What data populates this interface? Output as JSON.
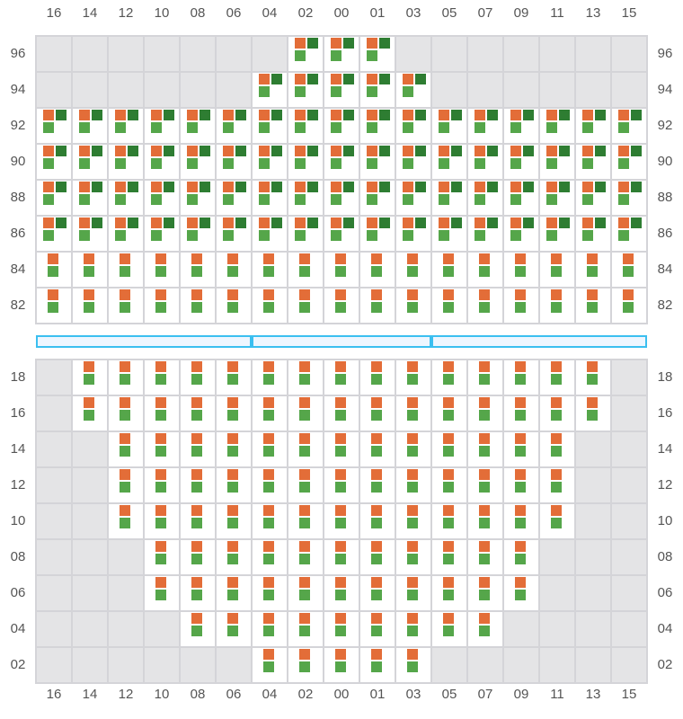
{
  "columns": [
    "16",
    "14",
    "12",
    "10",
    "08",
    "06",
    "04",
    "02",
    "00",
    "01",
    "03",
    "05",
    "07",
    "09",
    "11",
    "13",
    "15"
  ],
  "colors": {
    "orange": "#e36d38",
    "dark_green": "#2e7d32",
    "light_green": "#55a64a",
    "empty_cell": "#e4e4e6",
    "divider": "#3bbff0"
  },
  "legend_of_cell_types": {
    "E": "empty",
    "F": "orange + dark green + light green",
    "B": "orange + light green"
  },
  "top_section": [
    {
      "label": "96",
      "cells": "EEEEEEEFFFEEEEEEE"
    },
    {
      "label": "94",
      "cells": "EEEEEEFFFFFEEEEEE"
    },
    {
      "label": "92",
      "cells": "FFFFFFFFFFFFFFFFF"
    },
    {
      "label": "90",
      "cells": "FFFFFFFFFFFFFFFFF"
    },
    {
      "label": "88",
      "cells": "FFFFFFFFFFFFFFFFF"
    },
    {
      "label": "86",
      "cells": "FFFFFFFFFFFFFFFFF"
    },
    {
      "label": "84",
      "cells": "BBBBBBBBBBBBBBBBB"
    },
    {
      "label": "82",
      "cells": "BBBBBBBBBBBBBBBBB"
    }
  ],
  "divider_segments": 3,
  "bottom_section": [
    {
      "label": "18",
      "cells": "EBBBBBBBBBBBBBBBE"
    },
    {
      "label": "16",
      "cells": "EBBBBBBBBBBBBBBBE"
    },
    {
      "label": "14",
      "cells": "EEBBBBBBBBBBBBBEE"
    },
    {
      "label": "12",
      "cells": "EEBBBBBBBBBBBBBEE"
    },
    {
      "label": "10",
      "cells": "EEBBBBBBBBBBBBBEE"
    },
    {
      "label": "08",
      "cells": "EEEBBBBBBBBBBBEEE"
    },
    {
      "label": "06",
      "cells": "EEEBBBBBBBBBBBEEE"
    },
    {
      "label": "04",
      "cells": "EEEEBBBBBBBBBEEEE"
    },
    {
      "label": "02",
      "cells": "EEEEEEBBBBBEEEEEE"
    }
  ]
}
